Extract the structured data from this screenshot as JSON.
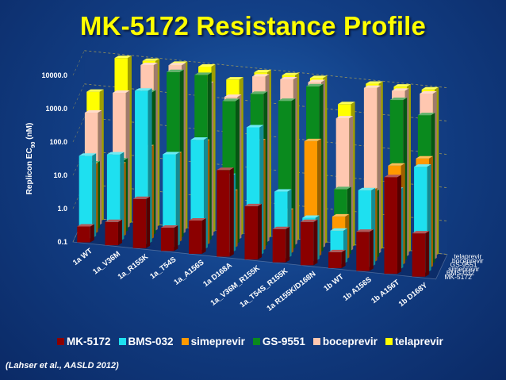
{
  "slide": {
    "title": "MK-5172 Resistance Profile",
    "citation": "(Lahser et al., AASLD 2012)"
  },
  "colors": {
    "MK-5172": "#8b0000",
    "BMS-032": "#1ee0f0",
    "simeprevir": "#ff9900",
    "GS-9551": "#0a8a1e",
    "boceprevir": "#ffc7b0",
    "telaprevir": "#ffff00"
  },
  "chart_data": {
    "type": "bar",
    "title": "MK-5172 Resistance Profile",
    "ylabel": "Replicon EC90 (nM)",
    "ylabel_main": "Replicon EC",
    "ylabel_sub": "90",
    "ylabel_unit": " (nM)",
    "y_scale": "log",
    "ylim": [
      0.1,
      10000
    ],
    "ytick_labels": [
      "0.1",
      "1.0",
      "10.0",
      "100.0",
      "1000.0",
      "10000.0"
    ],
    "categories": [
      "1a WT",
      "1a_V36M",
      "1a_R155K",
      "1a_T54S",
      "1a_A156S",
      "1a D168A",
      "1a_V36M_R155K",
      "1a_T54S_R155K",
      "1a R155K/D168N",
      "1b WT",
      "1b A156S",
      "1b A156T",
      "1b D168Y"
    ],
    "series": [
      {
        "name": "MK-5172",
        "values": [
          0.3,
          0.5,
          3,
          0.5,
          1,
          40,
          4,
          1,
          2,
          0.3,
          1.5,
          80,
          2
        ]
      },
      {
        "name": "BMS-032",
        "values": [
          30,
          40,
          4000,
          60,
          200,
          20,
          700,
          10,
          2,
          1,
          20,
          25,
          150
        ]
      },
      {
        "name": "simeprevir",
        "values": [
          12,
          15,
          60,
          45,
          130,
          5,
          200,
          2,
          300,
          2,
          15,
          100,
          200
        ]
      },
      {
        "name": "GS-9551",
        "values": [
          10,
          15,
          2000,
          10000,
          10000,
          2000,
          4000,
          3000,
          10000,
          10,
          10,
          7000,
          3000
        ]
      },
      {
        "name": "boceprevir",
        "values": [
          250,
          1200,
          10000,
          12000,
          4000,
          2000,
          10000,
          10000,
          10000,
          1000,
          10000,
          10000,
          10000
        ]
      },
      {
        "name": "telaprevir",
        "values": [
          800,
          10000,
          10000,
          10000,
          10000,
          5000,
          10000,
          10000,
          10000,
          2000,
          10000,
          10000,
          10000
        ]
      }
    ],
    "legend_placement": "bottom",
    "grid": true
  }
}
